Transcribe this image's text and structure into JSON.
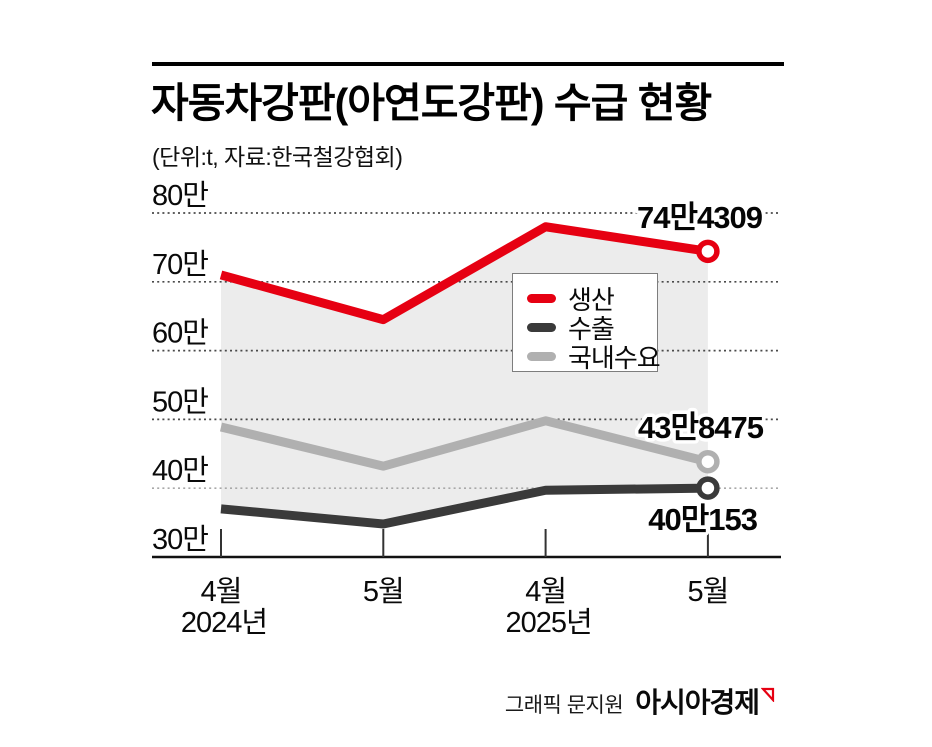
{
  "header": {
    "title": "자동차강판(아연도강판) 수급 현황",
    "subtitle": "(단위:t, 자료:한국철강협회)"
  },
  "legend": {
    "items": [
      {
        "label": "생산",
        "color": "#e60012"
      },
      {
        "label": "수출",
        "color": "#3a3a3a"
      },
      {
        "label": "국내수요",
        "color": "#b0b0b0"
      }
    ]
  },
  "footer": {
    "credit": "그래픽 문지원",
    "brand": "아시아경제",
    "brand_mark_color": "#e60012"
  },
  "chart_data": {
    "type": "line",
    "unit": "t",
    "x_labels": [
      "4월",
      "5월",
      "4월",
      "5월"
    ],
    "year_labels": [
      {
        "index": 0,
        "label": "2024년"
      },
      {
        "index": 2,
        "label": "2025년"
      }
    ],
    "y_ticks": [
      {
        "label": "80만",
        "value": 800000
      },
      {
        "label": "70만",
        "value": 700000
      },
      {
        "label": "60만",
        "value": 600000
      },
      {
        "label": "50만",
        "value": 500000
      },
      {
        "label": "40만",
        "value": 400000,
        "muted": true
      },
      {
        "label": "30만",
        "value": 300000
      }
    ],
    "ylim": [
      300000,
      800000
    ],
    "grid": "dotted-horizontal",
    "legend_position": "inside-top-right",
    "series": [
      {
        "key": "production",
        "name": "생산",
        "color": "#e60012",
        "values": [
          710000,
          645000,
          780000,
          744309
        ],
        "end_label": "74만4309"
      },
      {
        "key": "exports",
        "name": "수출",
        "color": "#3a3a3a",
        "values": [
          370000,
          348000,
          397000,
          400153
        ],
        "end_label": "40만153"
      },
      {
        "key": "domestic",
        "name": "국내수요",
        "color": "#b0b0b0",
        "values": [
          489000,
          432000,
          498000,
          438475
        ],
        "end_label": "43만8475"
      }
    ],
    "area_fill": {
      "between": [
        "생산",
        "수출"
      ],
      "color": "#ececec"
    }
  }
}
